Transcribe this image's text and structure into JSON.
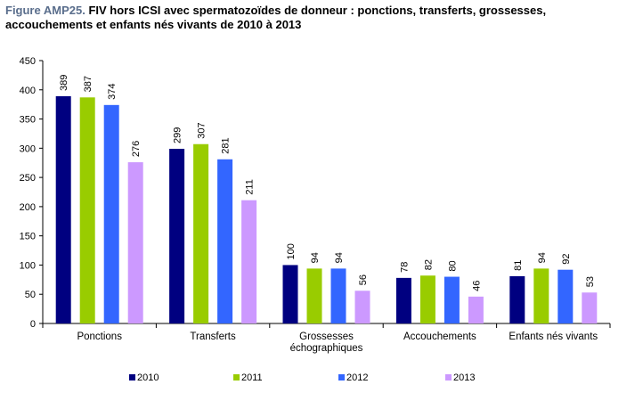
{
  "title": {
    "label": "Figure AMP25.",
    "text": "FIV hors ICSI avec spermatozoïdes de donneur : ponctions, transferts, grossesses, accouchements et enfants nés vivants de 2010 à 2013"
  },
  "chart_data": {
    "type": "bar",
    "categories": [
      [
        "Ponctions"
      ],
      [
        "Transferts"
      ],
      [
        "Grossesses",
        "échographiques"
      ],
      [
        "Accouchements"
      ],
      [
        "Enfants nés vivants"
      ]
    ],
    "series": [
      {
        "name": "2010",
        "color": "#000080",
        "values": [
          389,
          299,
          100,
          78,
          81
        ]
      },
      {
        "name": "2011",
        "color": "#99cc00",
        "values": [
          387,
          307,
          94,
          82,
          94
        ]
      },
      {
        "name": "2012",
        "color": "#3366ff",
        "values": [
          374,
          281,
          94,
          80,
          92
        ]
      },
      {
        "name": "2013",
        "color": "#cc99ff",
        "values": [
          276,
          211,
          56,
          46,
          53
        ]
      }
    ],
    "ylim": [
      0,
      450
    ],
    "yticks": [
      0,
      50,
      100,
      150,
      200,
      250,
      300,
      350,
      400,
      450
    ],
    "grid": false,
    "legend_position": "bottom",
    "data_labels": true
  }
}
